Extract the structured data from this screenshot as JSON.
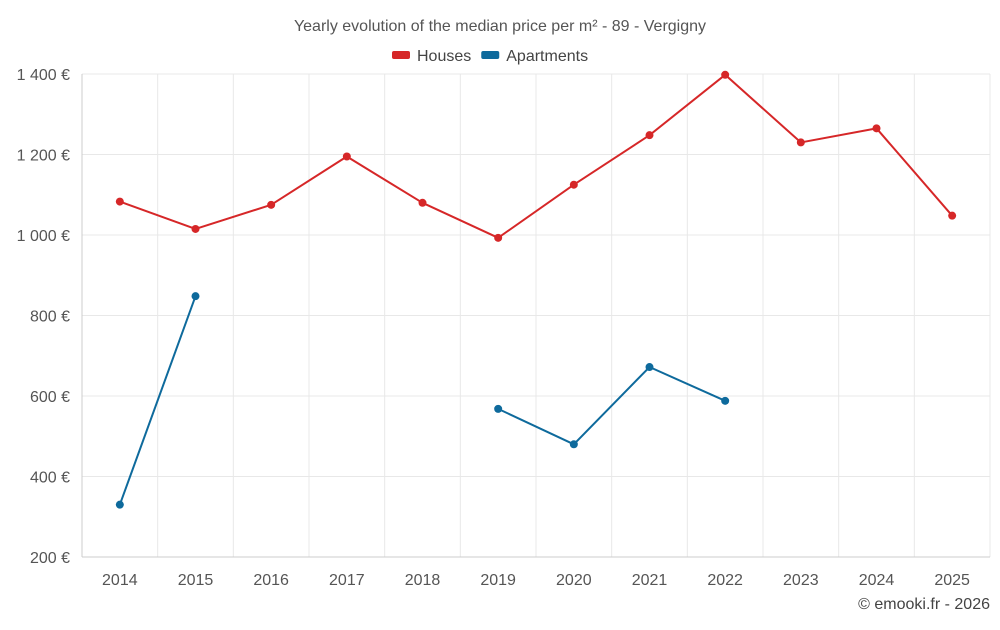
{
  "chart_data": {
    "type": "line",
    "title": "Yearly evolution of the median price per m² - 89 - Vergigny",
    "x": [
      "2014",
      "2015",
      "2016",
      "2017",
      "2018",
      "2019",
      "2020",
      "2021",
      "2022",
      "2023",
      "2024",
      "2025"
    ],
    "series": [
      {
        "name": "Houses",
        "color": "#d62728",
        "values": [
          1083,
          1015,
          1075,
          1195,
          1080,
          993,
          1125,
          1248,
          1398,
          1230,
          1265,
          1048
        ]
      },
      {
        "name": "Apartments",
        "color": "#0e6a9c",
        "values": [
          330,
          848,
          null,
          null,
          null,
          568,
          480,
          672,
          588,
          null,
          null,
          null
        ]
      }
    ],
    "ylim": [
      200,
      1400
    ],
    "yticks": [
      200,
      400,
      600,
      800,
      1000,
      1200,
      1400
    ],
    "ytick_labels": [
      "200 €",
      "400 €",
      "600 €",
      "800 €",
      "1 000 €",
      "1 200 €",
      "1 400 €"
    ],
    "xlabel": "",
    "ylabel": "",
    "grid": true,
    "legend_position": "top-center"
  },
  "credit": "© emooki.fr - 2026"
}
